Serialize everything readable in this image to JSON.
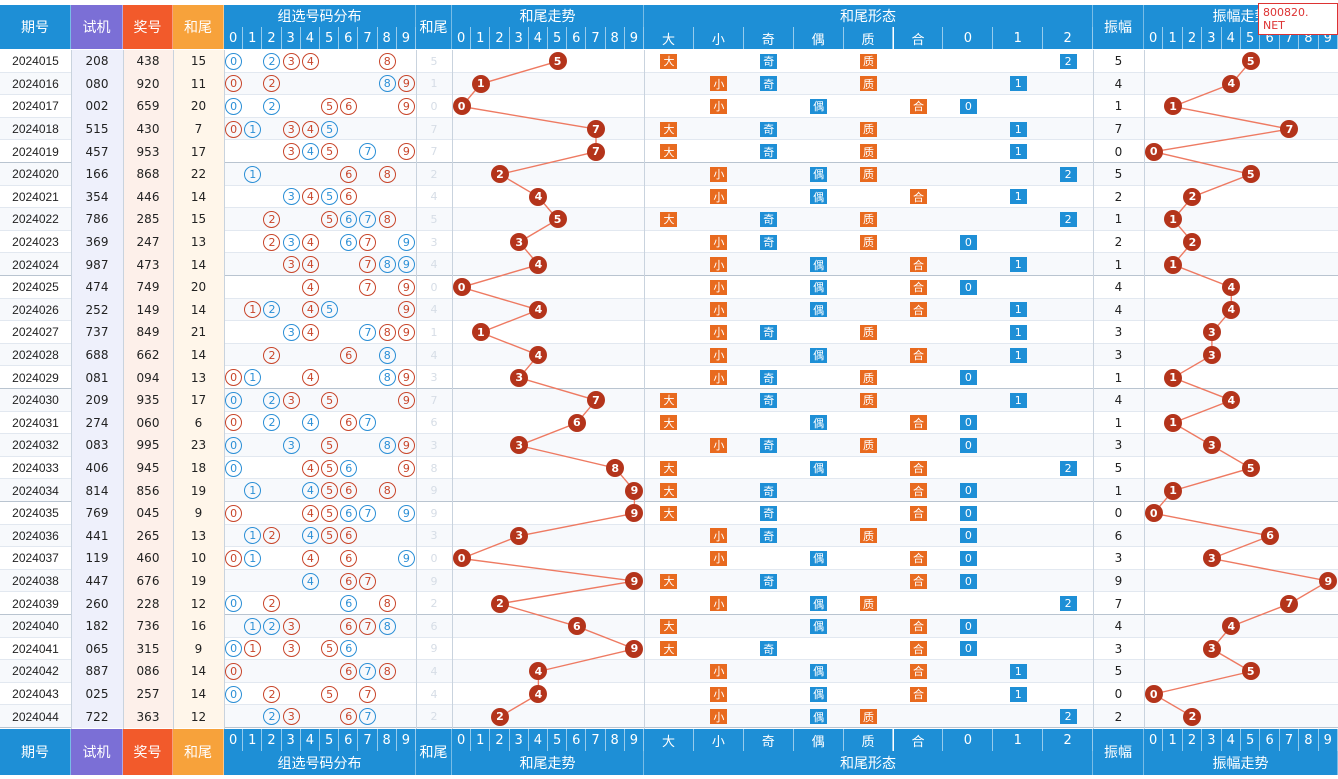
{
  "watermark": "800820. NET",
  "headers": {
    "qihao": "期号",
    "shiji": "试机",
    "jianghao": "奖号",
    "hewei": "和尾",
    "zuxuan": "组选号码分布",
    "hewei_col": "和尾",
    "hewei_zoushi": "和尾走势",
    "hewei_xingtai": "和尾形态",
    "zhenfu": "振幅",
    "zhenfu_zoushi": "振幅走势"
  },
  "digits": [
    "0",
    "1",
    "2",
    "3",
    "4",
    "5",
    "6",
    "7",
    "8",
    "9"
  ],
  "xingtai_labels": [
    "大",
    "小",
    "奇",
    "偶",
    "质",
    "合",
    "0",
    "1",
    "2"
  ],
  "colors": {
    "header_blue": "#1e8fd6",
    "shiji_purple": "#7b6fd6",
    "jianghao_red": "#f25a2b",
    "hewei_orange": "#f7a23b",
    "ball": "#b4341b",
    "tag_orange": "#e86a1f",
    "tag_blue": "#1e8fd6"
  },
  "rows": [
    {
      "qi": "2024015",
      "sj": "208",
      "jh": "438",
      "hw": "15",
      "t": 5,
      "z": 5
    },
    {
      "qi": "2024016",
      "sj": "080",
      "jh": "920",
      "hw": "11",
      "t": 1,
      "z": 4
    },
    {
      "qi": "2024017",
      "sj": "002",
      "jh": "659",
      "hw": "20",
      "t": 0,
      "z": 1
    },
    {
      "qi": "2024018",
      "sj": "515",
      "jh": "430",
      "hw": "7",
      "t": 7,
      "z": 7
    },
    {
      "qi": "2024019",
      "sj": "457",
      "jh": "953",
      "hw": "17",
      "t": 7,
      "z": 0
    },
    {
      "qi": "2024020",
      "sj": "166",
      "jh": "868",
      "hw": "22",
      "t": 2,
      "z": 5
    },
    {
      "qi": "2024021",
      "sj": "354",
      "jh": "446",
      "hw": "14",
      "t": 4,
      "z": 2
    },
    {
      "qi": "2024022",
      "sj": "786",
      "jh": "285",
      "hw": "15",
      "t": 5,
      "z": 1
    },
    {
      "qi": "2024023",
      "sj": "369",
      "jh": "247",
      "hw": "13",
      "t": 3,
      "z": 2
    },
    {
      "qi": "2024024",
      "sj": "987",
      "jh": "473",
      "hw": "14",
      "t": 4,
      "z": 1
    },
    {
      "qi": "2024025",
      "sj": "474",
      "jh": "749",
      "hw": "20",
      "t": 0,
      "z": 4
    },
    {
      "qi": "2024026",
      "sj": "252",
      "jh": "149",
      "hw": "14",
      "t": 4,
      "z": 4
    },
    {
      "qi": "2024027",
      "sj": "737",
      "jh": "849",
      "hw": "21",
      "t": 1,
      "z": 3
    },
    {
      "qi": "2024028",
      "sj": "688",
      "jh": "662",
      "hw": "14",
      "t": 4,
      "z": 3
    },
    {
      "qi": "2024029",
      "sj": "081",
      "jh": "094",
      "hw": "13",
      "t": 3,
      "z": 1
    },
    {
      "qi": "2024030",
      "sj": "209",
      "jh": "935",
      "hw": "17",
      "t": 7,
      "z": 4
    },
    {
      "qi": "2024031",
      "sj": "274",
      "jh": "060",
      "hw": "6",
      "t": 6,
      "z": 1
    },
    {
      "qi": "2024032",
      "sj": "083",
      "jh": "995",
      "hw": "23",
      "t": 3,
      "z": 3
    },
    {
      "qi": "2024033",
      "sj": "406",
      "jh": "945",
      "hw": "18",
      "t": 8,
      "z": 5
    },
    {
      "qi": "2024034",
      "sj": "814",
      "jh": "856",
      "hw": "19",
      "t": 9,
      "z": 1
    },
    {
      "qi": "2024035",
      "sj": "769",
      "jh": "045",
      "hw": "9",
      "t": 9,
      "z": 0
    },
    {
      "qi": "2024036",
      "sj": "441",
      "jh": "265",
      "hw": "13",
      "t": 3,
      "z": 6
    },
    {
      "qi": "2024037",
      "sj": "119",
      "jh": "460",
      "hw": "10",
      "t": 0,
      "z": 3
    },
    {
      "qi": "2024038",
      "sj": "447",
      "jh": "676",
      "hw": "19",
      "t": 9,
      "z": 9
    },
    {
      "qi": "2024039",
      "sj": "260",
      "jh": "228",
      "hw": "12",
      "t": 2,
      "z": 7
    },
    {
      "qi": "2024040",
      "sj": "182",
      "jh": "736",
      "hw": "16",
      "t": 6,
      "z": 4
    },
    {
      "qi": "2024041",
      "sj": "065",
      "jh": "315",
      "hw": "9",
      "t": 9,
      "z": 3
    },
    {
      "qi": "2024042",
      "sj": "887",
      "jh": "086",
      "hw": "14",
      "t": 4,
      "z": 5
    },
    {
      "qi": "2024043",
      "sj": "025",
      "jh": "257",
      "hw": "14",
      "t": 4,
      "z": 0
    },
    {
      "qi": "2024044",
      "sj": "722",
      "jh": "363",
      "hw": "12",
      "t": 2,
      "z": 2
    }
  ]
}
